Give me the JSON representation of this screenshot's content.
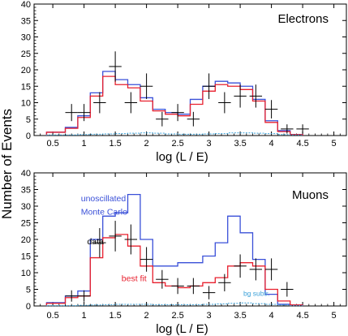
{
  "shared": {
    "ylabel": "Number of Events",
    "xlabel": "log (L / E)"
  },
  "colors": {
    "unoscillated": "#3a50d8",
    "best_fit": "#e8202e",
    "background": "#3aa0d8",
    "data": "#000000"
  },
  "chart_data": [
    {
      "type": "histogram",
      "panel": "electrons",
      "title": "Electrons",
      "xlabel": "log (L / E)",
      "ylabel": "Number of Events",
      "xlim": [
        0.2,
        5.2
      ],
      "ylim": [
        0,
        40
      ],
      "xticks": [
        0.5,
        1,
        1.5,
        2,
        2.5,
        3,
        3.5,
        4,
        4.5,
        5
      ],
      "xtick_labels": [
        "0.5",
        "1",
        "1.5",
        "2",
        "2.5",
        "3",
        "3.5",
        "4",
        "4.5",
        "5"
      ],
      "yticks": [
        0,
        5,
        10,
        15,
        20,
        25,
        30,
        35,
        40
      ],
      "ytick_labels": [
        "0",
        "5",
        "10",
        "15",
        "20",
        "25",
        "30",
        "35",
        "40"
      ],
      "bin_edges": [
        0.4,
        0.7,
        0.9,
        1.1,
        1.3,
        1.5,
        1.7,
        1.9,
        2.1,
        2.3,
        2.5,
        2.7,
        2.9,
        3.1,
        3.3,
        3.5,
        3.7,
        3.9,
        4.1,
        4.3,
        4.5
      ],
      "series": [
        {
          "name": "unoscillated",
          "color_key": "unoscillated",
          "values": [
            1,
            2.5,
            6,
            13,
            19.5,
            17,
            15.5,
            11.5,
            8,
            7,
            6.5,
            11,
            15,
            16.5,
            16,
            15,
            11,
            4.5,
            1.5,
            0.3
          ]
        },
        {
          "name": "best fit",
          "color_key": "best_fit",
          "values": [
            1,
            2.2,
            5.5,
            12,
            18,
            15.5,
            14.5,
            10.5,
            7.5,
            6.5,
            6,
            9.5,
            13.5,
            15.5,
            15,
            14,
            10.5,
            4,
            1.2,
            0.3
          ]
        },
        {
          "name": "bg subtr.",
          "color_key": "background",
          "values": [
            0.2,
            0.2,
            0.3,
            0.4,
            0.5,
            0.6,
            0.7,
            0.8,
            0.7,
            0.5,
            0.4,
            0.4,
            0.5,
            0.6,
            0.8,
            0.8,
            0.7,
            0.6,
            0.3,
            0.2
          ]
        }
      ],
      "data_points": [
        {
          "x": 0.8,
          "y": 7,
          "yerr": 2.6,
          "xerr": 0.1
        },
        {
          "x": 1.0,
          "y": 7,
          "yerr": 2.6,
          "xerr": 0.1
        },
        {
          "x": 1.25,
          "y": 10,
          "yerr": 3.2,
          "xerr": 0.1
        },
        {
          "x": 1.5,
          "y": 21,
          "yerr": 4.6,
          "xerr": 0.1
        },
        {
          "x": 1.75,
          "y": 10,
          "yerr": 3.2,
          "xerr": 0.1
        },
        {
          "x": 2.0,
          "y": 15,
          "yerr": 3.9,
          "xerr": 0.1
        },
        {
          "x": 2.25,
          "y": 5,
          "yerr": 2.2,
          "xerr": 0.1
        },
        {
          "x": 2.5,
          "y": 7,
          "yerr": 2.6,
          "xerr": 0.1
        },
        {
          "x": 2.75,
          "y": 5,
          "yerr": 2.2,
          "xerr": 0.1
        },
        {
          "x": 3.0,
          "y": 15,
          "yerr": 3.9,
          "xerr": 0.1
        },
        {
          "x": 3.25,
          "y": 10,
          "yerr": 3.2,
          "xerr": 0.1
        },
        {
          "x": 3.5,
          "y": 12,
          "yerr": 3.5,
          "xerr": 0.1
        },
        {
          "x": 3.75,
          "y": 12,
          "yerr": 3.5,
          "xerr": 0.1
        },
        {
          "x": 4.0,
          "y": 8,
          "yerr": 2.8,
          "xerr": 0.1
        },
        {
          "x": 4.25,
          "y": 2,
          "yerr": 1.4,
          "xerr": 0.1
        },
        {
          "x": 4.5,
          "y": 2,
          "yerr": 1.4,
          "xerr": 0.1
        }
      ],
      "annotations": []
    },
    {
      "type": "histogram",
      "panel": "muons",
      "title": "Muons",
      "xlabel": "log (L / E)",
      "ylabel": "Number of Events",
      "xlim": [
        0.2,
        5.2
      ],
      "ylim": [
        0,
        40
      ],
      "xticks": [
        0.5,
        1,
        1.5,
        2,
        2.5,
        3,
        3.5,
        4,
        4.5,
        5
      ],
      "xtick_labels": [
        "0.5",
        "1",
        "1.5",
        "2",
        "2.5",
        "3",
        "3.5",
        "4",
        "4.5",
        "5"
      ],
      "yticks": [
        0,
        5,
        10,
        15,
        20,
        25,
        30,
        35,
        40
      ],
      "ytick_labels": [
        "0",
        "5",
        "10",
        "15",
        "20",
        "25",
        "30",
        "35",
        "40"
      ],
      "bin_edges": [
        0.4,
        0.7,
        0.9,
        1.1,
        1.3,
        1.5,
        1.7,
        1.9,
        2.1,
        2.3,
        2.5,
        2.7,
        2.9,
        3.1,
        3.3,
        3.5,
        3.7,
        3.9,
        4.1,
        4.3,
        4.5
      ],
      "series": [
        {
          "name": "unoscillated",
          "color_key": "unoscillated",
          "values": [
            1,
            3,
            4.5,
            20,
            27,
            28,
            33.5,
            20,
            12,
            12,
            13,
            13,
            15,
            19,
            27,
            22,
            14,
            3.5,
            0.5,
            0.3
          ]
        },
        {
          "name": "best fit",
          "color_key": "best_fit",
          "values": [
            0.8,
            2.5,
            3,
            14.5,
            20.5,
            21.5,
            18,
            12,
            7,
            6,
            5.5,
            6,
            7,
            8.5,
            12,
            13,
            12,
            5,
            1.5,
            0.3
          ]
        },
        {
          "name": "bg subtr.",
          "color_key": "background",
          "values": [
            0.1,
            0.1,
            0.2,
            0.3,
            0.4,
            0.5,
            0.5,
            0.5,
            0.4,
            0.4,
            0.4,
            0.4,
            0.5,
            0.6,
            0.8,
            0.9,
            0.7,
            0.5,
            0.3,
            0.1
          ]
        }
      ],
      "data_points": [
        {
          "x": 0.8,
          "y": 3,
          "yerr": 1.7,
          "xerr": 0.1
        },
        {
          "x": 1.0,
          "y": 3,
          "yerr": 1.7,
          "xerr": 0.1
        },
        {
          "x": 1.25,
          "y": 19,
          "yerr": 4.4,
          "xerr": 0.1
        },
        {
          "x": 1.5,
          "y": 21,
          "yerr": 4.6,
          "xerr": 0.1
        },
        {
          "x": 1.75,
          "y": 20,
          "yerr": 4.5,
          "xerr": 0.1
        },
        {
          "x": 2.0,
          "y": 14,
          "yerr": 3.7,
          "xerr": 0.1
        },
        {
          "x": 2.25,
          "y": 8,
          "yerr": 2.8,
          "xerr": 0.1
        },
        {
          "x": 2.5,
          "y": 6,
          "yerr": 2.4,
          "xerr": 0.1
        },
        {
          "x": 2.75,
          "y": 6,
          "yerr": 2.4,
          "xerr": 0.1
        },
        {
          "x": 3.0,
          "y": 4,
          "yerr": 2.0,
          "xerr": 0.1
        },
        {
          "x": 3.25,
          "y": 7,
          "yerr": 2.6,
          "xerr": 0.1
        },
        {
          "x": 3.5,
          "y": 12,
          "yerr": 3.5,
          "xerr": 0.1
        },
        {
          "x": 3.75,
          "y": 11,
          "yerr": 3.3,
          "xerr": 0.1
        },
        {
          "x": 4.0,
          "y": 11,
          "yerr": 3.3,
          "xerr": 0.1
        },
        {
          "x": 4.25,
          "y": 5,
          "yerr": 2.2,
          "xerr": 0.1
        }
      ],
      "annotations": [
        {
          "text": "unoscillated",
          "color_key": "unoscillated",
          "x": 0.95,
          "y": 31.5
        },
        {
          "text": "Monte Carlo",
          "color_key": "unoscillated",
          "x": 0.95,
          "y": 27.5
        },
        {
          "text": "data",
          "color_key": "data",
          "x": 1.05,
          "y": 18.5
        },
        {
          "text": "best fit",
          "color_key": "best_fit",
          "x": 1.6,
          "y": 7.5
        },
        {
          "text": "bg subtr.",
          "color_key": "background",
          "x": 3.55,
          "y": 3.0
        }
      ]
    }
  ]
}
